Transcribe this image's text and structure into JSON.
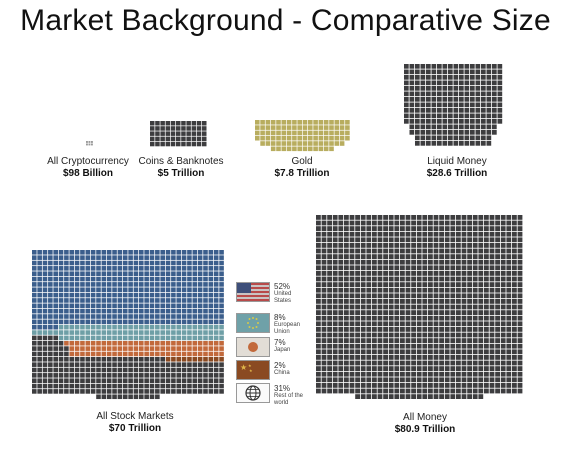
{
  "title": "Market Background - Comparative Size",
  "colors": {
    "grid": "#3d3d3f",
    "gold": "#b8ad5f",
    "us": "#3b5e8c",
    "eu": "#6e9fa6",
    "japan": "#c2693b",
    "china": "#8a4a22",
    "row": "#3d3d3f"
  },
  "chart_data": {
    "type": "waffle",
    "unit": "grid squares",
    "items": [
      {
        "label": "All Cryptocurrency",
        "value_text": "$98 Billion",
        "value": 0.098
      },
      {
        "label": "Coins & Banknotes",
        "value_text": "$5 Trillion",
        "value": 5
      },
      {
        "label": "Gold",
        "value_text": "$7.8 Trillion",
        "value": 7.8
      },
      {
        "label": "Liquid Money",
        "value_text": "$28.6 Trillion",
        "value": 28.6
      },
      {
        "label": "All Stock Markets",
        "value_text": "$70 Trillion",
        "value": 70
      },
      {
        "label": "All Money",
        "value_text": "$80.9  Trillion",
        "value": 80.9
      }
    ],
    "stock_breakdown": [
      {
        "pct": "52%",
        "name": "United States",
        "name_lines": [
          "United",
          "States"
        ],
        "share": 52,
        "color_key": "us",
        "icon": "us-flag-icon"
      },
      {
        "pct": "8%",
        "name": "European Union",
        "name_lines": [
          "European",
          "Union"
        ],
        "share": 8,
        "color_key": "eu",
        "icon": "eu-flag-icon"
      },
      {
        "pct": "7%",
        "name": "Japan",
        "name_lines": [
          "Japan"
        ],
        "share": 7,
        "color_key": "japan",
        "icon": "japan-flag-icon"
      },
      {
        "pct": "2%",
        "name": "China",
        "name_lines": [
          "China"
        ],
        "share": 2,
        "color_key": "china",
        "icon": "china-flag-icon"
      },
      {
        "pct": "31%",
        "name": "Rest of the world",
        "name_lines": [
          "Rest of the",
          "world"
        ],
        "share": 31,
        "color_key": "row",
        "icon": "globe-icon"
      }
    ]
  }
}
